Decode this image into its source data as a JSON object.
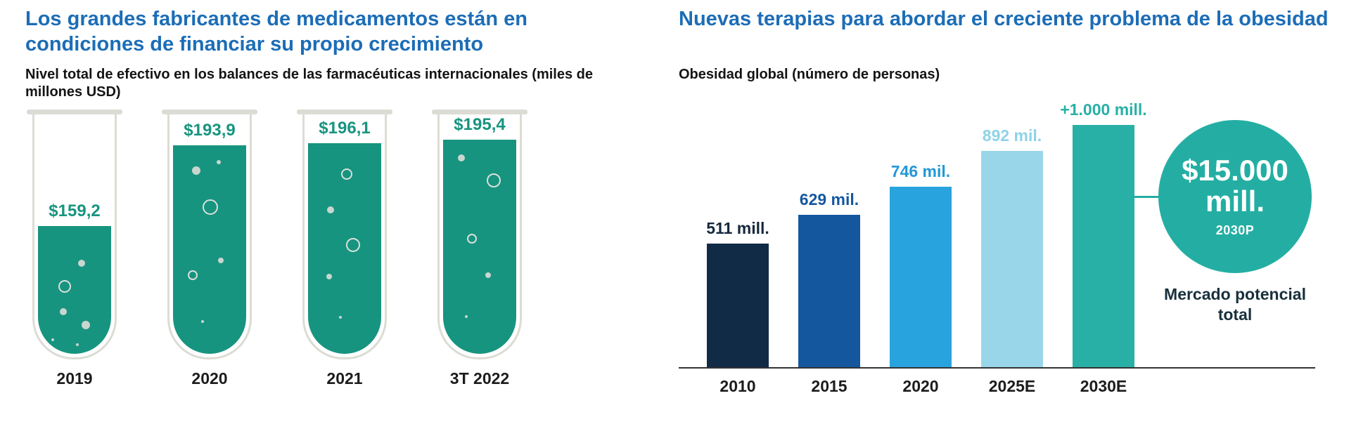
{
  "accent_colors": {
    "title_blue": "#1c6db6",
    "tube_teal": "#17947f",
    "annotation_teal": "#24aea3"
  },
  "chart_data": [
    {
      "type": "bar",
      "variant": "test-tube-infographic",
      "title": "Los grandes fabricantes de medicamentos están en condiciones de financiar su propio crecimiento",
      "subtitle": "Nivel total de efectivo en los balances de las farmacéuticas internacionales (miles de millones USD)",
      "categories": [
        "2019",
        "2020",
        "2021",
        "3T 2022"
      ],
      "values": [
        159.2,
        193.9,
        196.1,
        195.4
      ],
      "value_labels": [
        "$159,2",
        "$193,9",
        "$196,1",
        "$195,4"
      ],
      "unit": "miles de millones USD",
      "fill_color": "#17947f",
      "fill_fractions": [
        0.52,
        0.85,
        0.86,
        0.875
      ],
      "ylim": [
        0,
        220
      ],
      "grid": false,
      "legend": false
    },
    {
      "type": "bar",
      "title": "Nuevas terapias para abordar el creciente problema de la obesidad",
      "subtitle": "Obesidad global (número de personas)",
      "categories": [
        "2010",
        "2015",
        "2020",
        "2025E",
        "2030E"
      ],
      "values": [
        511,
        629,
        746,
        892,
        1000
      ],
      "value_labels": [
        "511 mill.",
        "629 mil.",
        "746 mil.",
        "892 mil.",
        "+1.000 mill."
      ],
      "bar_colors": [
        "#112b47",
        "#15579f",
        "#29a3dd",
        "#99d6ea",
        "#28b0a6"
      ],
      "label_colors": [
        "#15283c",
        "#15579f",
        "#2398d6",
        "#8fd2e8",
        "#28b0a6"
      ],
      "ylim": [
        0,
        1050
      ],
      "grid": false,
      "legend": false,
      "annotation": {
        "line1": "$15.000",
        "line2": "mill.",
        "sub": "2030P",
        "caption": "Mercado potencial total",
        "color": "#24aea3"
      }
    }
  ]
}
